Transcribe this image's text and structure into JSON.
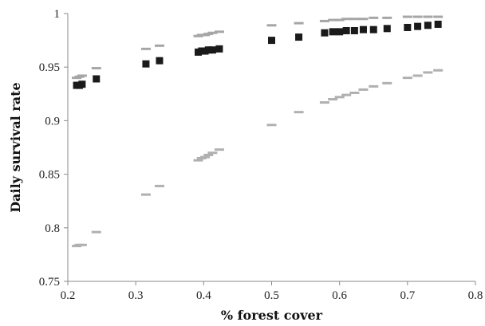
{
  "chart_data": {
    "type": "scatter",
    "title": "",
    "xlabel": "% forest cover",
    "ylabel": "Daily survival rate",
    "xlim": [
      0.2,
      0.8
    ],
    "ylim": [
      0.75,
      1.0
    ],
    "x_ticks": [
      "0.2",
      "0.3",
      "0.4",
      "0.5",
      "0.6",
      "0.7",
      "0.8"
    ],
    "y_ticks": [
      "0.75",
      "0.8",
      "0.85",
      "0.9",
      "0.95",
      "1"
    ],
    "grid": false,
    "legend": "none",
    "series": [
      {
        "role": "upper bound",
        "marker": "dash",
        "color": "#a6a6a6",
        "points": [
          [
            0.213,
            0.94
          ],
          [
            0.217,
            0.941
          ],
          [
            0.221,
            0.942
          ],
          [
            0.242,
            0.949
          ],
          [
            0.315,
            0.967
          ],
          [
            0.335,
            0.97
          ],
          [
            0.392,
            0.979
          ],
          [
            0.397,
            0.98
          ],
          [
            0.402,
            0.98
          ],
          [
            0.407,
            0.981
          ],
          [
            0.413,
            0.982
          ],
          [
            0.423,
            0.983
          ],
          [
            0.5,
            0.989
          ],
          [
            0.54,
            0.991
          ],
          [
            0.578,
            0.993
          ],
          [
            0.59,
            0.994
          ],
          [
            0.6,
            0.994
          ],
          [
            0.61,
            0.995
          ],
          [
            0.622,
            0.995
          ],
          [
            0.635,
            0.995
          ],
          [
            0.65,
            0.996
          ],
          [
            0.67,
            0.996
          ],
          [
            0.7,
            0.997
          ],
          [
            0.715,
            0.997
          ],
          [
            0.73,
            0.997
          ],
          [
            0.745,
            0.997
          ]
        ]
      },
      {
        "role": "estimate",
        "marker": "square",
        "color": "#1a1a1a",
        "points": [
          [
            0.213,
            0.933
          ],
          [
            0.217,
            0.933
          ],
          [
            0.221,
            0.934
          ],
          [
            0.242,
            0.939
          ],
          [
            0.315,
            0.953
          ],
          [
            0.335,
            0.956
          ],
          [
            0.392,
            0.964
          ],
          [
            0.397,
            0.965
          ],
          [
            0.402,
            0.965
          ],
          [
            0.407,
            0.966
          ],
          [
            0.413,
            0.966
          ],
          [
            0.423,
            0.967
          ],
          [
            0.5,
            0.975
          ],
          [
            0.54,
            0.978
          ],
          [
            0.578,
            0.982
          ],
          [
            0.59,
            0.983
          ],
          [
            0.6,
            0.983
          ],
          [
            0.61,
            0.984
          ],
          [
            0.622,
            0.984
          ],
          [
            0.635,
            0.985
          ],
          [
            0.65,
            0.985
          ],
          [
            0.67,
            0.986
          ],
          [
            0.7,
            0.987
          ],
          [
            0.715,
            0.988
          ],
          [
            0.73,
            0.989
          ],
          [
            0.745,
            0.99
          ]
        ]
      },
      {
        "role": "lower bound",
        "marker": "dash",
        "color": "#b0b0b0",
        "points": [
          [
            0.213,
            0.783
          ],
          [
            0.217,
            0.784
          ],
          [
            0.221,
            0.784
          ],
          [
            0.242,
            0.796
          ],
          [
            0.315,
            0.831
          ],
          [
            0.335,
            0.839
          ],
          [
            0.392,
            0.863
          ],
          [
            0.397,
            0.865
          ],
          [
            0.402,
            0.866
          ],
          [
            0.407,
            0.868
          ],
          [
            0.413,
            0.87
          ],
          [
            0.423,
            0.873
          ],
          [
            0.5,
            0.896
          ],
          [
            0.54,
            0.908
          ],
          [
            0.578,
            0.917
          ],
          [
            0.59,
            0.92
          ],
          [
            0.6,
            0.922
          ],
          [
            0.61,
            0.924
          ],
          [
            0.622,
            0.926
          ],
          [
            0.635,
            0.929
          ],
          [
            0.65,
            0.932
          ],
          [
            0.67,
            0.935
          ],
          [
            0.7,
            0.94
          ],
          [
            0.715,
            0.942
          ],
          [
            0.73,
            0.945
          ],
          [
            0.745,
            0.947
          ]
        ]
      }
    ]
  }
}
